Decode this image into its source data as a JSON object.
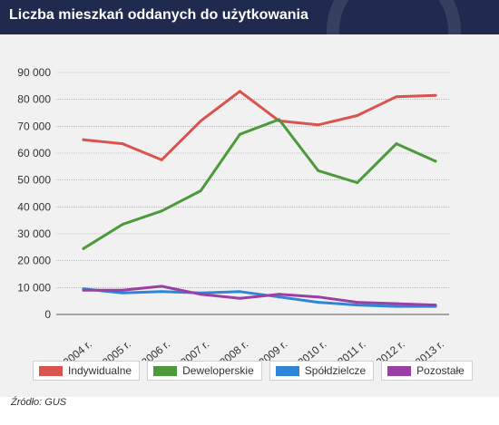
{
  "header": {
    "title": "Liczba mieszkań oddanych do użytkowania"
  },
  "source": "Źródło: GUS",
  "chart_data": {
    "type": "line",
    "title": "Liczba mieszkań oddanych do użytkowania",
    "xlabel": "",
    "ylabel": "",
    "categories": [
      "2004 r.",
      "2005 r.",
      "2006 r.",
      "2007 r.",
      "2008 r.",
      "2009 r.",
      "2010 r.",
      "2011 r.",
      "2012 r.",
      "2013 r."
    ],
    "yticks": [
      "0",
      "10 000",
      "20 000",
      "30 000",
      "40 000",
      "50 000",
      "60 000",
      "70 000",
      "80 000",
      "90 000"
    ],
    "ylim": [
      0,
      90000
    ],
    "grid": true,
    "legend_position": "bottom",
    "series": [
      {
        "name": "Indywidualne",
        "color": "#d9534f",
        "values": [
          65000,
          63500,
          57500,
          72000,
          83000,
          72000,
          70500,
          74000,
          81000,
          81500
        ]
      },
      {
        "name": "Deweloperskie",
        "color": "#4c9a3c",
        "values": [
          24500,
          33500,
          38500,
          46000,
          67000,
          72500,
          53500,
          49000,
          63500,
          57000
        ]
      },
      {
        "name": "Spółdzielcze",
        "color": "#2f86d8",
        "values": [
          9500,
          8000,
          8500,
          8000,
          8500,
          6500,
          4500,
          3500,
          3000,
          3000
        ]
      },
      {
        "name": "Pozostałe",
        "color": "#9b3fa6",
        "values": [
          9000,
          9000,
          10500,
          7500,
          6000,
          7500,
          6500,
          4500,
          4000,
          3500
        ]
      }
    ]
  }
}
